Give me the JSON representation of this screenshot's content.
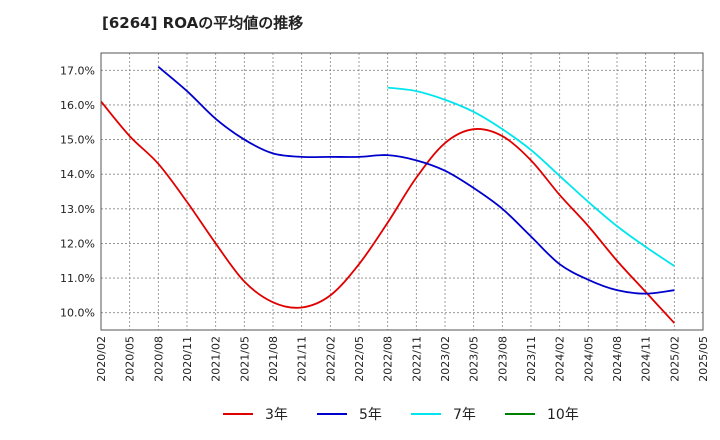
{
  "chart_data": {
    "type": "line",
    "title": "[6264]  ROAの平均値の推移",
    "xlabel": "",
    "ylabel": "",
    "x": [
      "2020/02",
      "2020/05",
      "2020/08",
      "2020/11",
      "2021/02",
      "2021/05",
      "2021/08",
      "2021/11",
      "2022/02",
      "2022/05",
      "2022/08",
      "2022/11",
      "2023/02",
      "2023/05",
      "2023/08",
      "2023/11",
      "2024/02",
      "2024/05",
      "2024/08",
      "2024/11",
      "2025/02",
      "2025/05"
    ],
    "yticks": [
      "10.0%",
      "11.0%",
      "12.0%",
      "13.0%",
      "14.0%",
      "15.0%",
      "16.0%",
      "17.0%"
    ],
    "ylim": [
      9.5,
      17.5
    ],
    "grid": true,
    "legend_position": "bottom",
    "series": [
      {
        "name": "3年",
        "color": "#e00000",
        "values": [
          16.1,
          15.1,
          14.3,
          13.2,
          12.0,
          10.9,
          10.3,
          10.15,
          10.5,
          11.4,
          12.6,
          13.9,
          14.9,
          15.3,
          15.1,
          14.4,
          13.4,
          12.5,
          11.5,
          10.6,
          9.7,
          null
        ]
      },
      {
        "name": "5年",
        "color": "#0000cc",
        "values": [
          null,
          null,
          17.1,
          16.4,
          15.6,
          15.0,
          14.6,
          14.5,
          14.5,
          14.5,
          14.55,
          14.4,
          14.1,
          13.6,
          13.0,
          12.2,
          11.4,
          10.95,
          10.65,
          10.55,
          10.65,
          null
        ]
      },
      {
        "name": "7年",
        "color": "#00e5ee",
        "values": [
          null,
          null,
          null,
          null,
          null,
          null,
          null,
          null,
          null,
          null,
          16.5,
          16.4,
          16.15,
          15.8,
          15.3,
          14.7,
          13.95,
          13.2,
          12.5,
          11.9,
          11.35,
          null
        ]
      },
      {
        "name": "10年",
        "color": "#008000",
        "values": [
          null,
          null,
          null,
          null,
          null,
          null,
          null,
          null,
          null,
          null,
          null,
          null,
          null,
          null,
          null,
          null,
          null,
          null,
          null,
          null,
          null,
          null
        ]
      }
    ]
  }
}
